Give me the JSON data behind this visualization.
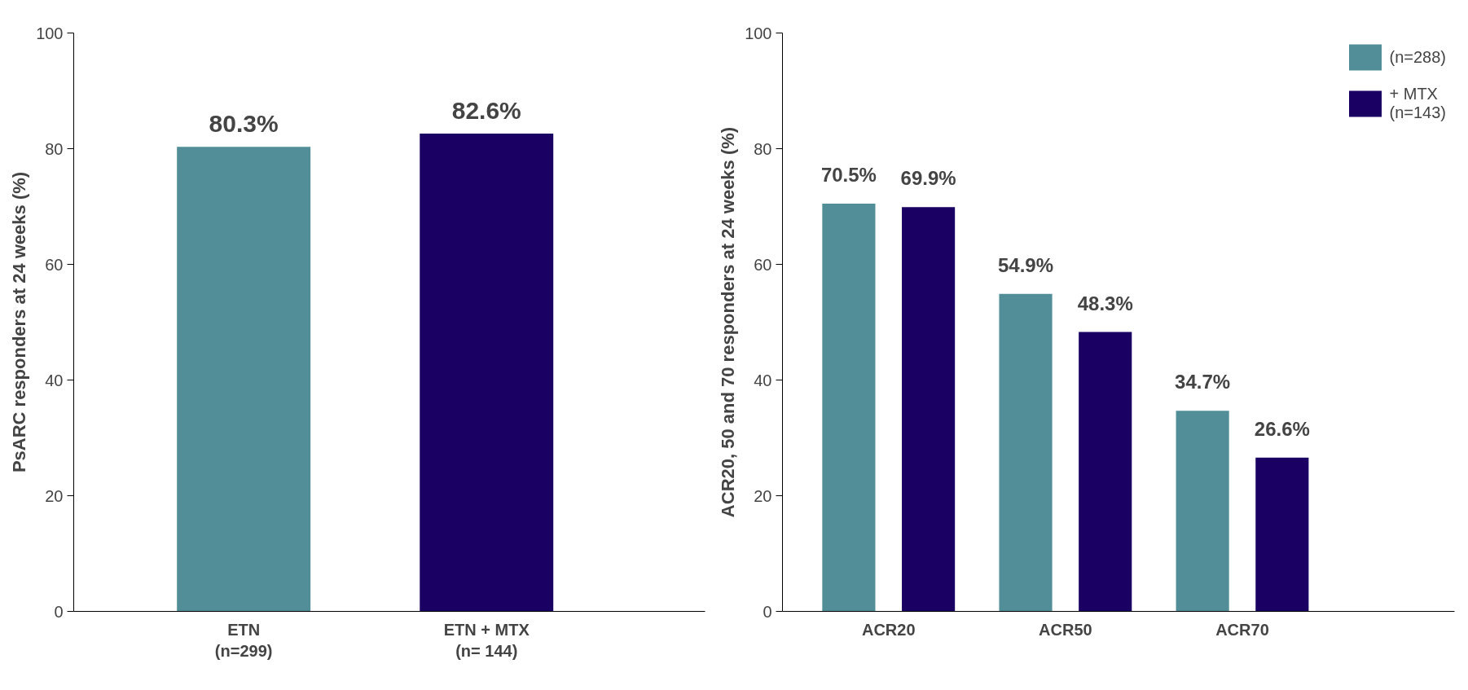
{
  "chart_data": [
    {
      "type": "bar",
      "ylabel": "PsARC responders at 24 weeks (%)",
      "categories": [
        "ETN\n(n=299)",
        "ETN + MTX\n(n= 144)"
      ],
      "values": [
        80.3,
        82.6
      ],
      "colors": [
        "#518e97",
        "#1b0063"
      ],
      "value_labels": [
        "80.3%",
        "82.6%"
      ],
      "ylim": [
        0,
        100
      ],
      "yticks": [
        0,
        20,
        40,
        60,
        80,
        100
      ],
      "grid": false,
      "legend": false
    },
    {
      "type": "bar",
      "ylabel": "ACR20, 50 and 70 responders at 24 weeks (%)",
      "categories": [
        "ACR20",
        "ACR50",
        "ACR70"
      ],
      "series": [
        {
          "name": "(n=288)",
          "color": "#518e97",
          "values": [
            70.5,
            54.9,
            34.7
          ],
          "value_labels": [
            "70.5%",
            "54.9%",
            "34.7%"
          ]
        },
        {
          "name": "+ MTX\n(n=143)",
          "color": "#1b0063",
          "values": [
            69.9,
            48.3,
            26.6
          ],
          "value_labels": [
            "69.9%",
            "48.3%",
            "26.6%"
          ]
        }
      ],
      "ylim": [
        0,
        100
      ],
      "yticks": [
        0,
        20,
        40,
        60,
        80,
        100
      ],
      "grid": false,
      "legend": "top right"
    }
  ]
}
